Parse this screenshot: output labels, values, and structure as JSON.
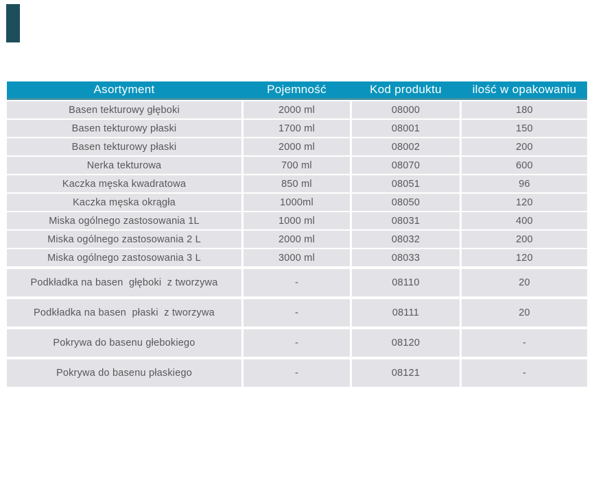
{
  "page": {
    "background": "#ffffff"
  },
  "decor": {
    "corner_square_color": "#1c4f5a"
  },
  "table": {
    "header": {
      "bg": "#0a94bd",
      "border_bottom": "#418fa4",
      "text_color": "#ffffff",
      "columns": [
        "Asortyment",
        "Pojemność",
        "Kod produktu",
        "ilość w opakowaniu"
      ]
    },
    "row_bg": "#e3e3e7",
    "row_text_color": "#58585a",
    "rows": [
      [
        "Basen tekturowy głęboki",
        "2000 ml",
        "08000",
        "180"
      ],
      [
        "Basen tekturowy płaski",
        "1700 ml",
        "08001",
        "150"
      ],
      [
        "Basen tekturowy płaski",
        "2000 ml",
        "08002",
        "200"
      ],
      [
        "Nerka tekturowa",
        "700 ml",
        "08070",
        "600"
      ],
      [
        "Kaczka męska kwadratowa",
        "850 ml",
        "08051",
        "96"
      ],
      [
        "Kaczka męska okrągła",
        "1000ml",
        "08050",
        "120"
      ],
      [
        "Miska ogólnego zastosowania 1L",
        "1000 ml",
        "08031",
        "400"
      ],
      [
        "Miska ogólnego zastosowania 2 L",
        "2000 ml",
        "08032",
        "200"
      ],
      [
        "Miska ogólnego zastosowania 3 L",
        "3000 ml",
        "08033",
        "120"
      ],
      [
        "Podkładka na basen  głęboki  z tworzywa",
        "-",
        "08110",
        "20"
      ],
      [
        "Podkładka na basen  płaski  z tworzywa",
        "-",
        "08111",
        "20"
      ],
      [
        "Pokrywa do basenu głebokiego",
        "-",
        "08120",
        "-"
      ],
      [
        "Pokrywa do basenu płaskiego",
        "-",
        "08121",
        "-"
      ]
    ],
    "tall_row_indices": [
      9,
      10,
      11,
      12
    ]
  }
}
